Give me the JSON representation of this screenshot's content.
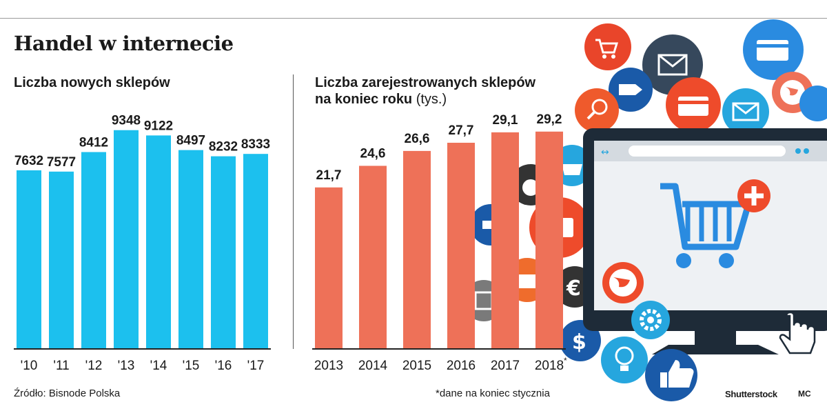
{
  "header": {
    "title": "Handel w internecie"
  },
  "left": {
    "subtitle": "Liczba nowych sklepów"
  },
  "right": {
    "subtitle_line1": "Liczba zarejestrowanych sklepów",
    "subtitle_line2": "na koniec roku",
    "subtitle_unit": "(tys.)"
  },
  "footer": {
    "source": "Źródło: Bisnode Polska",
    "note": "*dane na koniec stycznia",
    "credit": "Shutterstock",
    "author": "MC",
    "asterisk": "*"
  },
  "colors": {
    "left_bars": "#1cc0ee",
    "right_bars": "#ee7158"
  },
  "icons": [
    "shopping-cart-icon",
    "envelope-icon",
    "credit-card-icon",
    "tag-icon",
    "magnifier-icon",
    "globe-icon",
    "basket-icon",
    "apple-icon",
    "briefcase-icon",
    "euro-icon",
    "dollar-icon",
    "gear-icon",
    "lightbulb-icon",
    "thumbs-up-icon",
    "hand-cursor-icon",
    "monitor-icon",
    "plus-icon"
  ],
  "chart_data": [
    {
      "type": "bar",
      "title": "Liczba nowych sklepów",
      "categories": [
        "'10",
        "'11",
        "'12",
        "'13",
        "'14",
        "'15",
        "'16",
        "'17"
      ],
      "values": [
        7632,
        7577,
        8412,
        9348,
        9122,
        8497,
        8232,
        8333
      ],
      "labels": [
        "7632",
        "7577",
        "8412",
        "9348",
        "9122",
        "8497",
        "8232",
        "8333"
      ],
      "ylim": [
        0,
        9900
      ]
    },
    {
      "type": "bar",
      "title": "Liczba zarejestrowanych sklepów na koniec roku (tys.)",
      "categories": [
        "2013",
        "2014",
        "2015",
        "2016",
        "2017",
        "2018*"
      ],
      "values": [
        21.7,
        24.6,
        26.6,
        27.7,
        29.1,
        29.2
      ],
      "labels": [
        "21,7",
        "24,6",
        "26,6",
        "27,7",
        "29,1",
        "29,2"
      ],
      "ylim": [
        0,
        31.5
      ]
    }
  ]
}
